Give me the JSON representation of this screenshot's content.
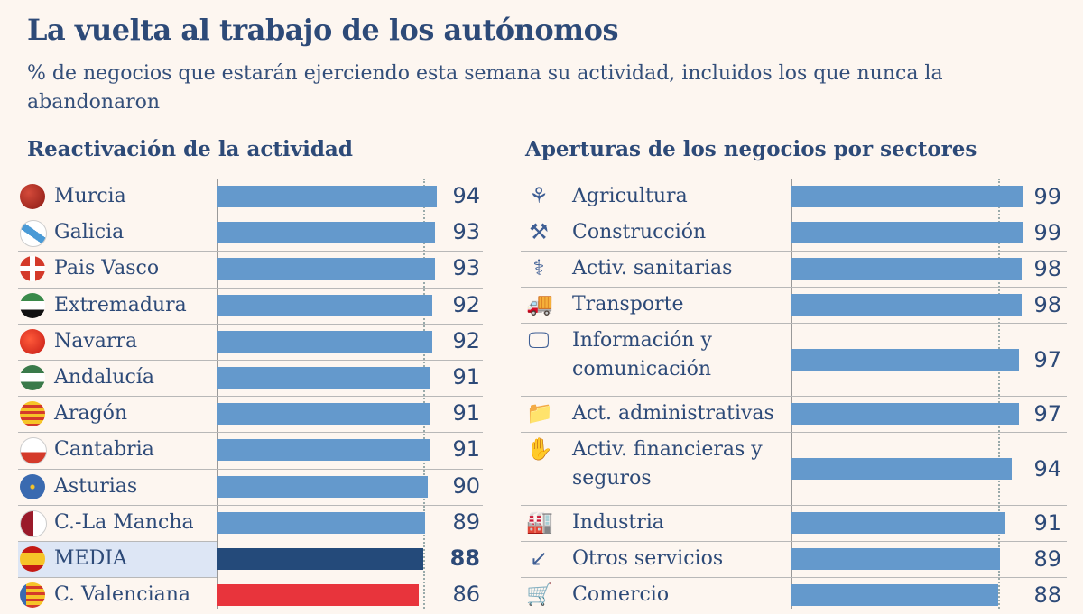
{
  "title": "La vuelta al trabajo de los autónomos",
  "subtitle": "% de negocios que estarán ejerciendo esta semana su actividad, incluidos los que nunca la abandonaron",
  "colors": {
    "bar": "#6499cc",
    "media": "#244a7a",
    "highlight": "#e8343c",
    "media_bg": "#dde6f5"
  },
  "chart_data": [
    {
      "type": "bar",
      "orientation": "horizontal",
      "title": "Reactivación de la actividad",
      "reference_line": 88,
      "categories": [
        "Murcia",
        "Galicia",
        "Pais Vasco",
        "Extremadura",
        "Navarra",
        "Andalucía",
        "Aragón",
        "Cantabria",
        "Asturias",
        "C.-La Mancha",
        "MEDIA",
        "C. Valenciana"
      ],
      "values": [
        94,
        93,
        93,
        92,
        92,
        91,
        91,
        91,
        90,
        89,
        88,
        86
      ],
      "icons": [
        "murcia-flag-icon",
        "galicia-flag-icon",
        "pais-vasco-flag-icon",
        "extremadura-flag-icon",
        "navarra-flag-icon",
        "andalucia-flag-icon",
        "aragon-flag-icon",
        "cantabria-flag-icon",
        "asturias-flag-icon",
        "castilla-la-mancha-flag-icon",
        "spain-flag-icon",
        "valenciana-flag-icon"
      ]
    },
    {
      "type": "bar",
      "orientation": "horizontal",
      "title": "Aperturas de los negocios por sectores",
      "reference_line": 88,
      "categories": [
        "Agricultura",
        "Construcción",
        "Activ. sanitarias",
        "Transporte",
        "Información y comunicación",
        "Act. administrativas",
        "Activ. financieras y seguros",
        "Industria",
        "Otros servicios",
        "Comercio"
      ],
      "values": [
        99,
        99,
        98,
        98,
        97,
        97,
        94,
        91,
        89,
        88
      ],
      "icons": [
        "wheat-icon",
        "trowel-bricks-icon",
        "stethoscope-icon",
        "truck-icon",
        "monitor-icon",
        "folder-icon",
        "hand-coin-icon",
        "factory-icon",
        "arrow-box-icon",
        "cart-icon"
      ]
    }
  ]
}
